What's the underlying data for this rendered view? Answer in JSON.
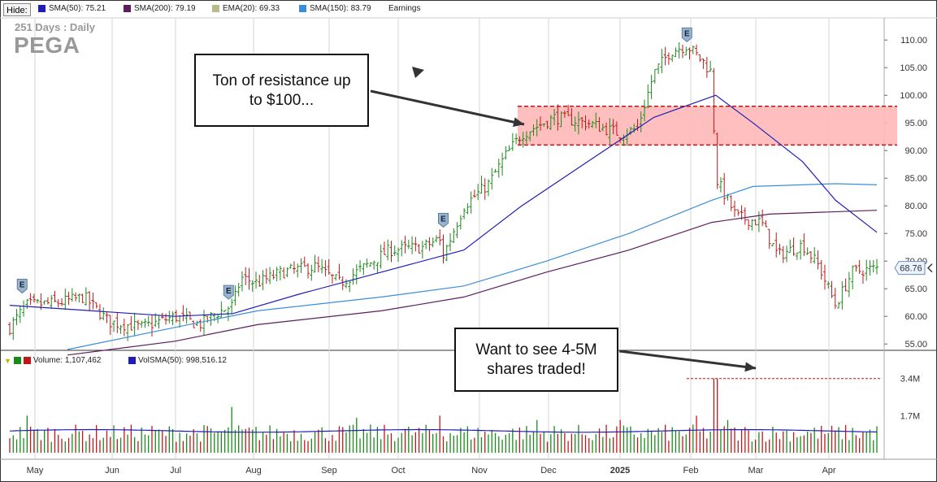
{
  "toolbar": {
    "hide_label": "Hide:",
    "legend": [
      {
        "label": "SMA(50): 75.21",
        "color": "#1f1fb8"
      },
      {
        "label": "SMA(200): 79.19",
        "color": "#5e1d5e"
      },
      {
        "label": "EMA(20): 69.33",
        "color": "#b9b98a"
      },
      {
        "label": "SMA(150): 83.79",
        "color": "#3b8fd9"
      },
      {
        "label": "Earnings",
        "color": ""
      }
    ]
  },
  "symbol": {
    "period": "251 Days : Daily",
    "ticker": "PEGA"
  },
  "price_marker": {
    "value": "68.76"
  },
  "volume_legend": {
    "volume_label": "Volume: 1,107,462",
    "volsma_label": "VolSMA(50): 998,516.12"
  },
  "annotations": {
    "resistance_line1": "Ton of resistance up",
    "resistance_line2": "to $100...",
    "volume_line1": "Want to see 4-5M",
    "volume_line2": "shares traded!"
  },
  "colors": {
    "up": "#1a8a1a",
    "down": "#c01818",
    "resistance_fill": "#ffb8b8",
    "resistance_border": "#cc1010",
    "sma50": "#1f1fb8",
    "sma150": "#3b8fd9",
    "sma200": "#5e1d5e",
    "grid": "#d6d6d6"
  },
  "chart_data": {
    "type": "candlestick",
    "title": "PEGA",
    "period": "251 Days : Daily",
    "x_months": [
      "May",
      "Jun",
      "Jul",
      "Aug",
      "Sep",
      "Oct",
      "Nov",
      "Dec",
      "2025",
      "Feb",
      "Mar",
      "Apr"
    ],
    "y_ticks": [
      "110.00",
      "105.00",
      "100.00",
      "95.00",
      "90.00",
      "85.00",
      "80.00",
      "75.00",
      "70.00",
      "65.00",
      "60.00",
      "55.00"
    ],
    "ylim": [
      54,
      114
    ],
    "last_price": 68.76,
    "resistance_zone": [
      91,
      98
    ],
    "earnings_markers": [
      {
        "month": "May",
        "label": "E"
      },
      {
        "month": "Jul",
        "label": "E"
      },
      {
        "month": "Oct",
        "label": "E"
      },
      {
        "month": "Feb",
        "label": "E"
      }
    ],
    "price_path": [
      {
        "t": 0,
        "close": 58
      },
      {
        "t": 0.02,
        "close": 62
      },
      {
        "t": 0.06,
        "close": 62.5
      },
      {
        "t": 0.09,
        "close": 63.5
      },
      {
        "t": 0.12,
        "close": 59
      },
      {
        "t": 0.16,
        "close": 58
      },
      {
        "t": 0.2,
        "close": 60
      },
      {
        "t": 0.23,
        "close": 58.5
      },
      {
        "t": 0.25,
        "close": 60.5
      },
      {
        "t": 0.27,
        "close": 62
      },
      {
        "t": 0.28,
        "close": 67
      },
      {
        "t": 0.3,
        "close": 66
      },
      {
        "t": 0.33,
        "close": 68
      },
      {
        "t": 0.37,
        "close": 69
      },
      {
        "t": 0.4,
        "close": 66
      },
      {
        "t": 0.43,
        "close": 69
      },
      {
        "t": 0.46,
        "close": 72
      },
      {
        "t": 0.5,
        "close": 72.5
      },
      {
        "t": 0.52,
        "close": 74
      },
      {
        "t": 0.525,
        "close": 71
      },
      {
        "t": 0.55,
        "close": 80
      },
      {
        "t": 0.58,
        "close": 84
      },
      {
        "t": 0.6,
        "close": 89
      },
      {
        "t": 0.62,
        "close": 93
      },
      {
        "t": 0.66,
        "close": 96
      },
      {
        "t": 0.7,
        "close": 95
      },
      {
        "t": 0.74,
        "close": 93
      },
      {
        "t": 0.76,
        "close": 94
      },
      {
        "t": 0.78,
        "close": 104
      },
      {
        "t": 0.8,
        "close": 108
      },
      {
        "t": 0.82,
        "close": 109
      },
      {
        "t": 0.84,
        "close": 106
      },
      {
        "t": 0.85,
        "close": 104
      },
      {
        "t": 0.855,
        "close": 85
      },
      {
        "t": 0.88,
        "close": 78
      },
      {
        "t": 0.91,
        "close": 77
      },
      {
        "t": 0.93,
        "close": 71
      },
      {
        "t": 0.96,
        "close": 73
      },
      {
        "t": 0.98,
        "close": 69
      },
      {
        "t": 1.0,
        "close": 62
      },
      {
        "t": 1.02,
        "close": 68
      },
      {
        "t": 1.05,
        "close": 68.76
      }
    ],
    "sma50": [
      {
        "t": 0,
        "v": 62
      },
      {
        "t": 0.1,
        "v": 61
      },
      {
        "t": 0.2,
        "v": 60
      },
      {
        "t": 0.27,
        "v": 60.5
      },
      {
        "t": 0.35,
        "v": 64
      },
      {
        "t": 0.45,
        "v": 68
      },
      {
        "t": 0.55,
        "v": 72
      },
      {
        "t": 0.62,
        "v": 80
      },
      {
        "t": 0.7,
        "v": 88
      },
      {
        "t": 0.78,
        "v": 96
      },
      {
        "t": 0.855,
        "v": 100
      },
      {
        "t": 0.9,
        "v": 95
      },
      {
        "t": 0.96,
        "v": 88
      },
      {
        "t": 1.0,
        "v": 81
      },
      {
        "t": 1.05,
        "v": 75.21
      }
    ],
    "sma150": [
      {
        "t": 0.07,
        "v": 54
      },
      {
        "t": 0.2,
        "v": 58
      },
      {
        "t": 0.3,
        "v": 61
      },
      {
        "t": 0.45,
        "v": 63.5
      },
      {
        "t": 0.55,
        "v": 65.5
      },
      {
        "t": 0.65,
        "v": 70
      },
      {
        "t": 0.75,
        "v": 75
      },
      {
        "t": 0.85,
        "v": 81
      },
      {
        "t": 0.9,
        "v": 83.5
      },
      {
        "t": 1.0,
        "v": 84
      },
      {
        "t": 1.05,
        "v": 83.79
      }
    ],
    "sma200": [
      {
        "t": 0.07,
        "v": 53
      },
      {
        "t": 0.2,
        "v": 55.5
      },
      {
        "t": 0.3,
        "v": 58.5
      },
      {
        "t": 0.45,
        "v": 61
      },
      {
        "t": 0.55,
        "v": 63.5
      },
      {
        "t": 0.65,
        "v": 68
      },
      {
        "t": 0.75,
        "v": 72
      },
      {
        "t": 0.85,
        "v": 77
      },
      {
        "t": 0.92,
        "v": 78.5
      },
      {
        "t": 1.05,
        "v": 79.19
      }
    ],
    "volume": {
      "y_ticks": [
        "3.4M",
        "1.7M"
      ],
      "ylim": [
        0,
        3.8
      ],
      "avg": 1.0,
      "target_line": 3.4,
      "spikes": [
        {
          "t": 0.02,
          "v": 1.7
        },
        {
          "t": 0.27,
          "v": 2.1
        },
        {
          "t": 0.42,
          "v": 1.6
        },
        {
          "t": 0.52,
          "v": 1.7
        },
        {
          "t": 0.64,
          "v": 1.5
        },
        {
          "t": 0.74,
          "v": 1.5
        },
        {
          "t": 0.83,
          "v": 1.7
        },
        {
          "t": 0.855,
          "v": 3.4
        },
        {
          "t": 0.87,
          "v": 1.5
        }
      ]
    }
  }
}
